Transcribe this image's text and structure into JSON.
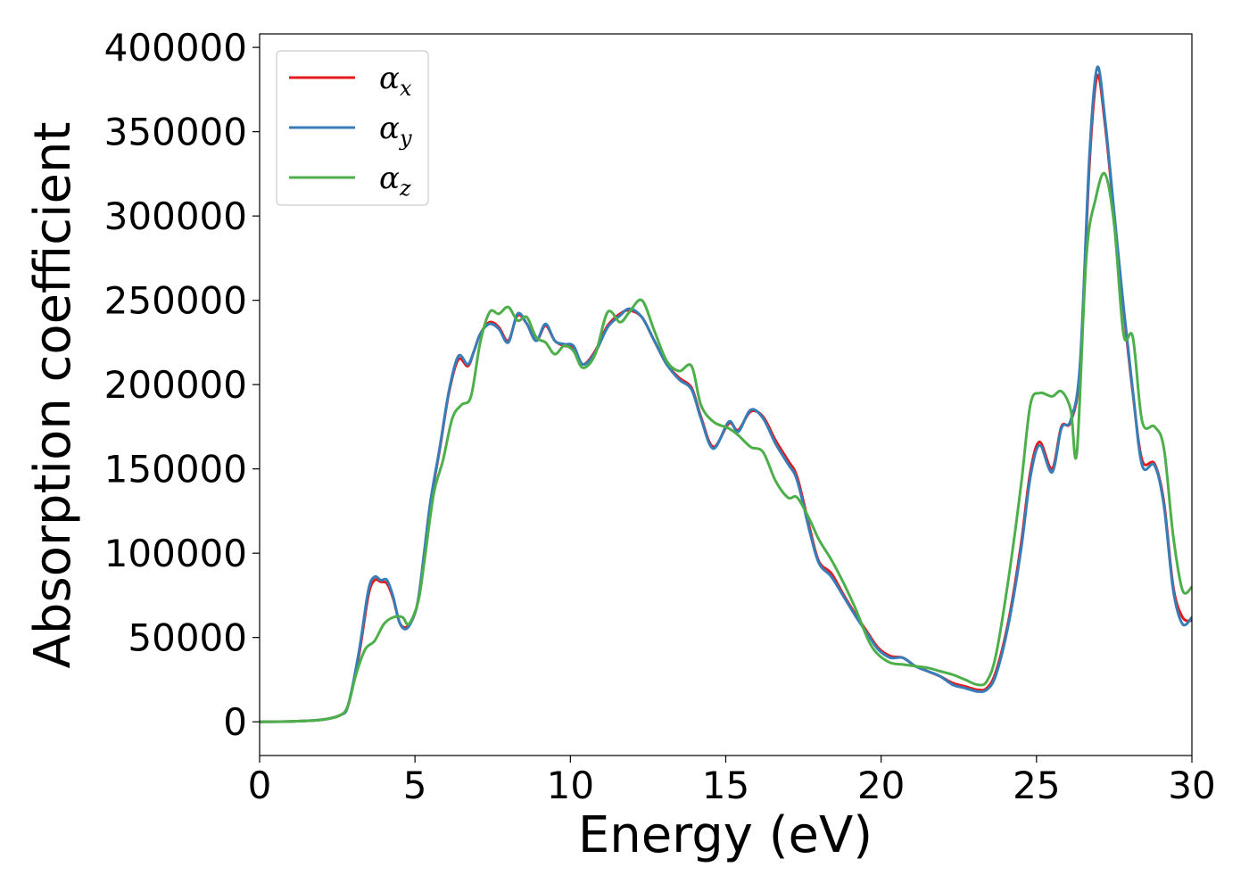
{
  "chart_data": {
    "type": "line",
    "title": "",
    "xlabel": "Energy (eV)",
    "ylabel": "Absorption coefficient",
    "xlim": [
      0,
      30
    ],
    "ylim": [
      -20000,
      408000
    ],
    "xticks": [
      0,
      5,
      10,
      15,
      20,
      25,
      30
    ],
    "yticks": [
      0,
      50000,
      100000,
      150000,
      200000,
      250000,
      300000,
      350000,
      400000
    ],
    "xtick_labels": [
      "0",
      "5",
      "10",
      "15",
      "20",
      "25",
      "30"
    ],
    "ytick_labels": [
      "0",
      "50000",
      "100000",
      "150000",
      "200000",
      "250000",
      "300000",
      "350000",
      "400000"
    ],
    "grid": false,
    "legend_position": "top-left",
    "series": [
      {
        "name": "α_x",
        "legend_symbol": "α",
        "legend_sub": "x",
        "color": "#e41a1c",
        "points": [
          [
            0,
            0
          ],
          [
            1,
            200
          ],
          [
            2,
            1200
          ],
          [
            2.6,
            4000
          ],
          [
            2.85,
            10000
          ],
          [
            3.2,
            40000
          ],
          [
            3.5,
            75000
          ],
          [
            3.7,
            84000
          ],
          [
            3.9,
            83000
          ],
          [
            4.1,
            82000
          ],
          [
            4.3,
            73000
          ],
          [
            4.5,
            59000
          ],
          [
            4.7,
            56000
          ],
          [
            4.9,
            60000
          ],
          [
            5.1,
            72000
          ],
          [
            5.3,
            100000
          ],
          [
            5.5,
            130000
          ],
          [
            5.8,
            162000
          ],
          [
            6.1,
            196000
          ],
          [
            6.4,
            215000
          ],
          [
            6.7,
            211000
          ],
          [
            6.9,
            220000
          ],
          [
            7.1,
            230000
          ],
          [
            7.4,
            237000
          ],
          [
            7.7,
            234000
          ],
          [
            8,
            226000
          ],
          [
            8.3,
            241000
          ],
          [
            8.6,
            236000
          ],
          [
            8.9,
            226000
          ],
          [
            9.2,
            235000
          ],
          [
            9.5,
            226000
          ],
          [
            9.8,
            223000
          ],
          [
            10.1,
            222000
          ],
          [
            10.4,
            212000
          ],
          [
            10.8,
            220000
          ],
          [
            11.2,
            235000
          ],
          [
            11.6,
            242000
          ],
          [
            11.9,
            244000
          ],
          [
            12.3,
            240000
          ],
          [
            12.7,
            226000
          ],
          [
            13.1,
            212000
          ],
          [
            13.5,
            204000
          ],
          [
            13.9,
            198000
          ],
          [
            14.2,
            181000
          ],
          [
            14.6,
            163000
          ],
          [
            15.1,
            177000
          ],
          [
            15.4,
            173000
          ],
          [
            15.8,
            184000
          ],
          [
            16.2,
            181000
          ],
          [
            16.6,
            167000
          ],
          [
            17,
            155000
          ],
          [
            17.3,
            145000
          ],
          [
            17.7,
            115000
          ],
          [
            18,
            95000
          ],
          [
            18.4,
            88000
          ],
          [
            18.8,
            75000
          ],
          [
            19.2,
            63000
          ],
          [
            19.6,
            52000
          ],
          [
            19.9,
            44000
          ],
          [
            20.3,
            39000
          ],
          [
            20.7,
            38000
          ],
          [
            21.1,
            33000
          ],
          [
            21.5,
            30000
          ],
          [
            21.9,
            27000
          ],
          [
            22.3,
            23000
          ],
          [
            22.7,
            21000
          ],
          [
            23.1,
            19000
          ],
          [
            23.4,
            20000
          ],
          [
            23.7,
            30000
          ],
          [
            24.1,
            60000
          ],
          [
            24.5,
            105000
          ],
          [
            24.8,
            148000
          ],
          [
            25.1,
            166000
          ],
          [
            25.5,
            150000
          ],
          [
            25.8,
            175000
          ],
          [
            26.1,
            178000
          ],
          [
            26.4,
            210000
          ],
          [
            26.7,
            330000
          ],
          [
            26.95,
            383000
          ],
          [
            27.2,
            355000
          ],
          [
            27.5,
            300000
          ],
          [
            27.8,
            245000
          ],
          [
            28.1,
            195000
          ],
          [
            28.4,
            155000
          ],
          [
            28.8,
            153000
          ],
          [
            29.1,
            130000
          ],
          [
            29.4,
            80000
          ],
          [
            29.7,
            62000
          ],
          [
            30,
            60000
          ]
        ]
      },
      {
        "name": "α_y",
        "legend_symbol": "α",
        "legend_sub": "y",
        "color": "#377eb8",
        "points": [
          [
            0,
            0
          ],
          [
            1,
            200
          ],
          [
            2,
            1200
          ],
          [
            2.6,
            4000
          ],
          [
            2.85,
            10000
          ],
          [
            3.2,
            42000
          ],
          [
            3.5,
            78000
          ],
          [
            3.7,
            86000
          ],
          [
            3.9,
            84000
          ],
          [
            4.1,
            84000
          ],
          [
            4.3,
            74000
          ],
          [
            4.5,
            59000
          ],
          [
            4.7,
            55000
          ],
          [
            4.9,
            60000
          ],
          [
            5.1,
            72000
          ],
          [
            5.3,
            101000
          ],
          [
            5.5,
            131000
          ],
          [
            5.8,
            163000
          ],
          [
            6.1,
            197000
          ],
          [
            6.4,
            217000
          ],
          [
            6.7,
            212000
          ],
          [
            6.9,
            220000
          ],
          [
            7.1,
            230000
          ],
          [
            7.4,
            236000
          ],
          [
            7.7,
            233000
          ],
          [
            8,
            225000
          ],
          [
            8.3,
            242000
          ],
          [
            8.6,
            236000
          ],
          [
            8.9,
            226000
          ],
          [
            9.2,
            236000
          ],
          [
            9.5,
            226000
          ],
          [
            9.8,
            224000
          ],
          [
            10.1,
            223000
          ],
          [
            10.4,
            212000
          ],
          [
            10.8,
            219000
          ],
          [
            11.2,
            234000
          ],
          [
            11.6,
            241000
          ],
          [
            11.9,
            245000
          ],
          [
            12.3,
            240000
          ],
          [
            12.7,
            226000
          ],
          [
            13.1,
            212000
          ],
          [
            13.5,
            203000
          ],
          [
            13.9,
            197000
          ],
          [
            14.2,
            180000
          ],
          [
            14.6,
            162000
          ],
          [
            15.1,
            178000
          ],
          [
            15.4,
            172000
          ],
          [
            15.8,
            185000
          ],
          [
            16.2,
            180000
          ],
          [
            16.6,
            165000
          ],
          [
            17,
            153000
          ],
          [
            17.3,
            143000
          ],
          [
            17.7,
            113000
          ],
          [
            18,
            94000
          ],
          [
            18.4,
            86000
          ],
          [
            18.8,
            74000
          ],
          [
            19.2,
            62000
          ],
          [
            19.6,
            51000
          ],
          [
            19.9,
            43000
          ],
          [
            20.3,
            38000
          ],
          [
            20.7,
            38000
          ],
          [
            21.1,
            33000
          ],
          [
            21.5,
            30000
          ],
          [
            21.9,
            27000
          ],
          [
            22.3,
            22000
          ],
          [
            22.7,
            20000
          ],
          [
            23.1,
            18000
          ],
          [
            23.4,
            19000
          ],
          [
            23.7,
            28000
          ],
          [
            24.1,
            58000
          ],
          [
            24.5,
            102000
          ],
          [
            24.8,
            145000
          ],
          [
            25.1,
            164000
          ],
          [
            25.5,
            148000
          ],
          [
            25.8,
            174000
          ],
          [
            26.1,
            179000
          ],
          [
            26.4,
            212000
          ],
          [
            26.7,
            335000
          ],
          [
            26.95,
            388000
          ],
          [
            27.2,
            358000
          ],
          [
            27.5,
            302000
          ],
          [
            27.8,
            246000
          ],
          [
            28.1,
            196000
          ],
          [
            28.4,
            152000
          ],
          [
            28.8,
            152000
          ],
          [
            29.1,
            128000
          ],
          [
            29.4,
            78000
          ],
          [
            29.7,
            58000
          ],
          [
            30,
            62000
          ]
        ]
      },
      {
        "name": "α_z",
        "legend_symbol": "α",
        "legend_sub": "z",
        "color": "#4daf4a",
        "points": [
          [
            0,
            0
          ],
          [
            1,
            200
          ],
          [
            2,
            1200
          ],
          [
            2.6,
            4000
          ],
          [
            2.85,
            10000
          ],
          [
            3.1,
            28000
          ],
          [
            3.4,
            43000
          ],
          [
            3.7,
            48000
          ],
          [
            4,
            58000
          ],
          [
            4.3,
            62000
          ],
          [
            4.6,
            62000
          ],
          [
            4.8,
            58000
          ],
          [
            5.1,
            71000
          ],
          [
            5.3,
            95000
          ],
          [
            5.6,
            135000
          ],
          [
            5.9,
            155000
          ],
          [
            6.2,
            180000
          ],
          [
            6.5,
            188000
          ],
          [
            6.8,
            193000
          ],
          [
            7.1,
            225000
          ],
          [
            7.4,
            243000
          ],
          [
            7.7,
            242000
          ],
          [
            8,
            246000
          ],
          [
            8.3,
            238000
          ],
          [
            8.6,
            240000
          ],
          [
            8.9,
            228000
          ],
          [
            9.2,
            225000
          ],
          [
            9.5,
            218000
          ],
          [
            9.8,
            223000
          ],
          [
            10.1,
            220000
          ],
          [
            10.4,
            210000
          ],
          [
            10.8,
            218000
          ],
          [
            11.2,
            243000
          ],
          [
            11.6,
            237000
          ],
          [
            11.9,
            243000
          ],
          [
            12.3,
            250000
          ],
          [
            12.7,
            232000
          ],
          [
            13.1,
            214000
          ],
          [
            13.5,
            208000
          ],
          [
            13.9,
            211000
          ],
          [
            14.2,
            188000
          ],
          [
            14.6,
            178000
          ],
          [
            15.1,
            174000
          ],
          [
            15.4,
            170000
          ],
          [
            15.8,
            163000
          ],
          [
            16.2,
            160000
          ],
          [
            16.6,
            143000
          ],
          [
            17,
            133000
          ],
          [
            17.3,
            133000
          ],
          [
            17.7,
            120000
          ],
          [
            18,
            108000
          ],
          [
            18.4,
            96000
          ],
          [
            18.8,
            82000
          ],
          [
            19.2,
            66000
          ],
          [
            19.6,
            48000
          ],
          [
            19.9,
            40000
          ],
          [
            20.3,
            35000
          ],
          [
            20.7,
            34000
          ],
          [
            21.1,
            33000
          ],
          [
            21.5,
            32000
          ],
          [
            21.9,
            30000
          ],
          [
            22.3,
            28000
          ],
          [
            22.7,
            25000
          ],
          [
            23.1,
            22000
          ],
          [
            23.4,
            24000
          ],
          [
            23.7,
            40000
          ],
          [
            24.1,
            85000
          ],
          [
            24.5,
            140000
          ],
          [
            24.8,
            188000
          ],
          [
            25.1,
            195000
          ],
          [
            25.5,
            193000
          ],
          [
            25.8,
            196000
          ],
          [
            26.1,
            185000
          ],
          [
            26.3,
            160000
          ],
          [
            26.6,
            275000
          ],
          [
            26.9,
            310000
          ],
          [
            27.2,
            325000
          ],
          [
            27.5,
            295000
          ],
          [
            27.8,
            230000
          ],
          [
            28.1,
            228000
          ],
          [
            28.4,
            178000
          ],
          [
            28.8,
            175000
          ],
          [
            29.1,
            162000
          ],
          [
            29.4,
            110000
          ],
          [
            29.7,
            78000
          ],
          [
            30,
            80000
          ]
        ]
      }
    ]
  }
}
